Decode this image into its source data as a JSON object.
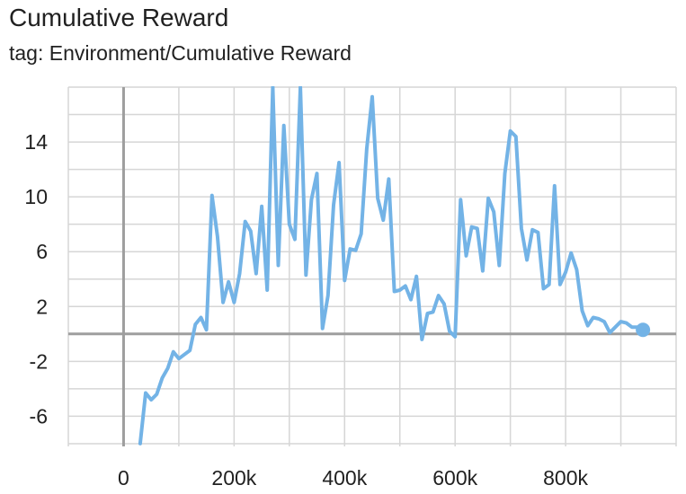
{
  "header": {
    "title": "Cumulative Reward",
    "subtitle": "tag: Environment/Cumulative Reward"
  },
  "chart_data": {
    "type": "line",
    "title": "Cumulative Reward",
    "subtitle": "tag: Environment/Cumulative Reward",
    "xlabel": "",
    "ylabel": "",
    "xlim": [
      -100000,
      1000000
    ],
    "ylim": [
      -8.2,
      18.0
    ],
    "grid": true,
    "x_ticks": [
      0,
      200000,
      400000,
      600000,
      800000
    ],
    "x_tick_labels": [
      "0",
      "200k",
      "400k",
      "600k",
      "800k"
    ],
    "y_ticks": [
      14,
      10,
      6,
      2,
      -2,
      -6
    ],
    "y_tick_labels": [
      "14",
      "10",
      "6",
      "2",
      "-2",
      "-6"
    ],
    "color": "#73b3e6",
    "series": [
      {
        "x": [
          30000,
          40000,
          50000,
          60000,
          70000,
          80000,
          90000,
          100000,
          110000,
          120000,
          130000,
          140000,
          150000,
          160000,
          170000,
          180000,
          190000,
          200000,
          210000,
          220000,
          230000,
          240000,
          250000,
          260000,
          270000,
          280000,
          290000,
          300000,
          310000,
          320000,
          330000,
          340000,
          350000,
          360000,
          370000,
          380000,
          390000,
          400000,
          410000,
          420000,
          430000,
          440000,
          450000,
          460000,
          470000,
          480000,
          490000,
          500000,
          510000,
          520000,
          530000,
          540000,
          550000,
          560000,
          570000,
          580000,
          590000,
          600000,
          610000,
          620000,
          630000,
          640000,
          650000,
          660000,
          670000,
          680000,
          690000,
          700000,
          710000,
          720000,
          730000,
          740000,
          750000,
          760000,
          770000,
          780000,
          790000,
          800000,
          810000,
          820000,
          830000,
          840000,
          850000,
          860000,
          870000,
          880000,
          890000,
          900000,
          910000,
          920000,
          930000,
          940000
        ],
        "y": [
          -8.0,
          -4.3,
          -4.8,
          -4.4,
          -3.2,
          -2.5,
          -1.3,
          -1.8,
          -1.5,
          -1.2,
          0.7,
          1.2,
          0.3,
          10.1,
          7.1,
          2.3,
          3.8,
          2.3,
          4.4,
          8.2,
          7.5,
          4.4,
          9.3,
          3.2,
          18.0,
          5.0,
          15.2,
          8.0,
          6.9,
          18.0,
          4.3,
          9.8,
          11.7,
          0.4,
          2.8,
          9.4,
          12.5,
          3.9,
          6.2,
          6.1,
          7.3,
          13.5,
          17.3,
          9.9,
          8.3,
          11.3,
          3.1,
          3.2,
          3.5,
          2.5,
          4.2,
          -0.4,
          1.5,
          1.6,
          2.8,
          2.2,
          0.2,
          -0.2,
          9.8,
          5.7,
          7.8,
          7.7,
          4.6,
          9.9,
          8.9,
          5.0,
          11.7,
          14.8,
          14.4,
          7.7,
          5.4,
          7.6,
          7.4,
          3.3,
          3.6,
          10.8,
          3.6,
          4.5,
          5.9,
          4.7,
          1.7,
          0.6,
          1.2,
          1.1,
          0.9,
          0.1,
          0.5,
          0.9,
          0.8,
          0.5,
          0.5,
          0.3
        ]
      }
    ]
  }
}
